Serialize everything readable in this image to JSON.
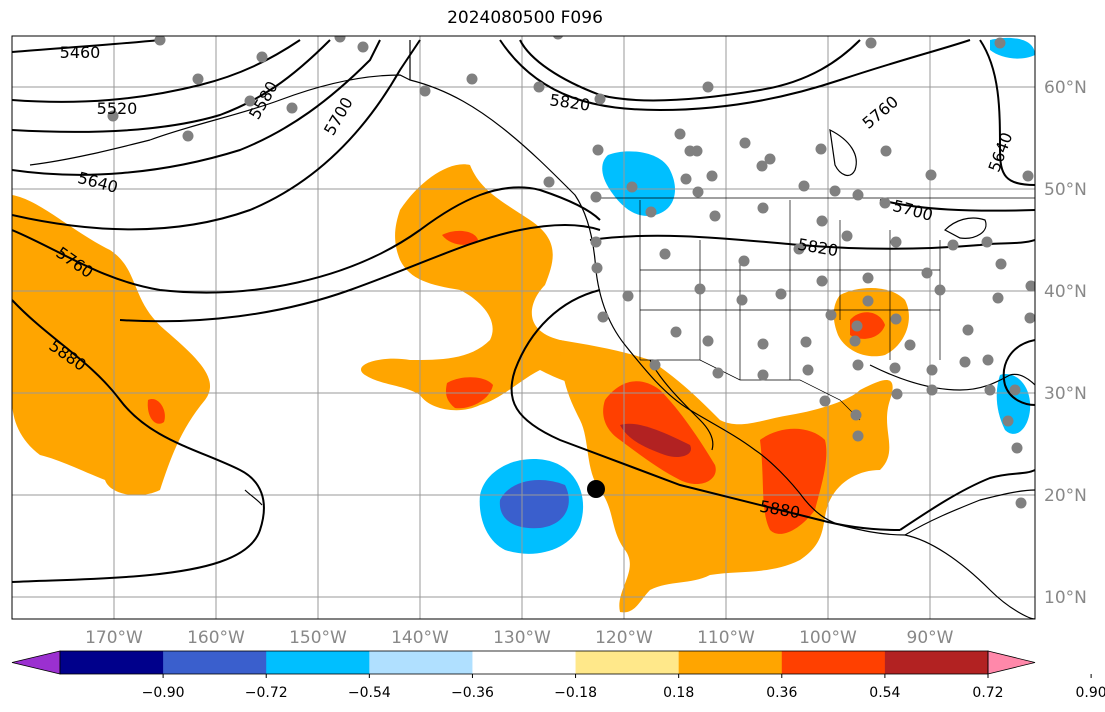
{
  "title": "2024080500 F096",
  "longitude_labels": [
    "170°W",
    "160°W",
    "150°W",
    "140°W",
    "130°W",
    "120°W",
    "110°W",
    "100°W",
    "90°W"
  ],
  "latitude_labels": [
    "60°N",
    "50°N",
    "40°N",
    "30°N",
    "20°N",
    "10°N"
  ],
  "contour_labels": [
    {
      "text": "5460"
    },
    {
      "text": "5520"
    },
    {
      "text": "5580"
    },
    {
      "text": "5640"
    },
    {
      "text": "5700"
    },
    {
      "text": "5760"
    },
    {
      "text": "5820"
    },
    {
      "text": "5820"
    },
    {
      "text": "5760"
    },
    {
      "text": "5700"
    },
    {
      "text": "5640"
    },
    {
      "text": "5880"
    },
    {
      "text": "5880"
    }
  ],
  "colorbar": {
    "ticks": [
      "−0.90",
      "−0.72",
      "−0.54",
      "−0.36",
      "−0.18",
      "0.18",
      "0.36",
      "0.54",
      "0.72",
      "0.90"
    ],
    "colors": [
      "#9b30d0",
      "#00008b",
      "#3a5fcd",
      "#00bfff",
      "#b0e0ff",
      "#ffffff",
      "#ffe88a",
      "#ffa500",
      "#ff4000",
      "#b22222",
      "#ff88aa"
    ]
  },
  "colors": {
    "land_outline": "#000000",
    "grid": "#999999",
    "station": "#808080",
    "marker": "#000000"
  }
}
